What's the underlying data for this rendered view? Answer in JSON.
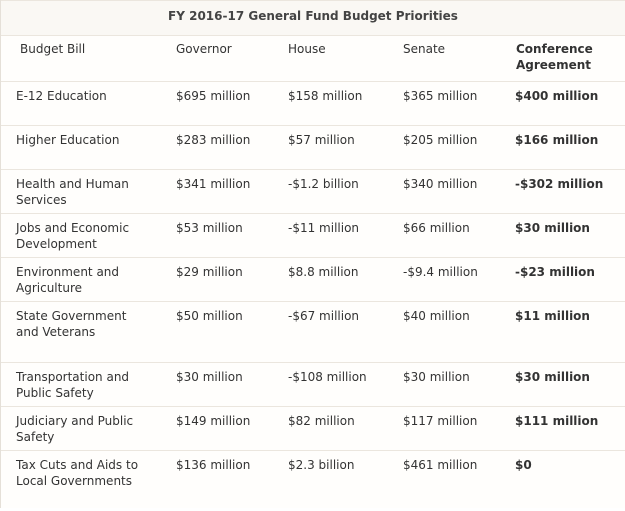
{
  "table": {
    "title": "FY 2016-17 General Fund Budget Priorities",
    "headers": [
      "Budget Bill",
      "Governor",
      "House",
      "Senate",
      "Conference Agreement"
    ],
    "rows": [
      [
        "E-12 Education",
        "$695 million",
        "$158 million",
        "$365 million",
        "$400 million"
      ],
      [
        "Higher Education",
        "$283 million",
        "$57 million",
        "$205 million",
        "$166 million"
      ],
      [
        "Health and Human Services",
        "$341 million",
        "-$1.2 billion",
        "$340 million",
        "-$302 million"
      ],
      [
        "Jobs and Economic Development",
        "$53 million",
        "-$11 million",
        "$66 million",
        " $30 million"
      ],
      [
        "Environment and Agriculture",
        "$29 million",
        "$8.8 million",
        "-$9.4 million",
        "-$23 million"
      ],
      [
        "State Government and Veterans",
        "$50 million",
        "-$67 million",
        "$40 million",
        "$11 million"
      ],
      [
        "Transportation and Public Safety",
        "$30 million",
        "-$108 million",
        "$30 million",
        "$30 million"
      ],
      [
        "Judiciary and Public Safety",
        "$149 million",
        "$82 million",
        "$117 million",
        "$111 million"
      ],
      [
        "Tax Cuts and Aids to Local Governments",
        "$136 million",
        "$2.3 billion",
        "$461 million",
        "$0"
      ]
    ]
  }
}
